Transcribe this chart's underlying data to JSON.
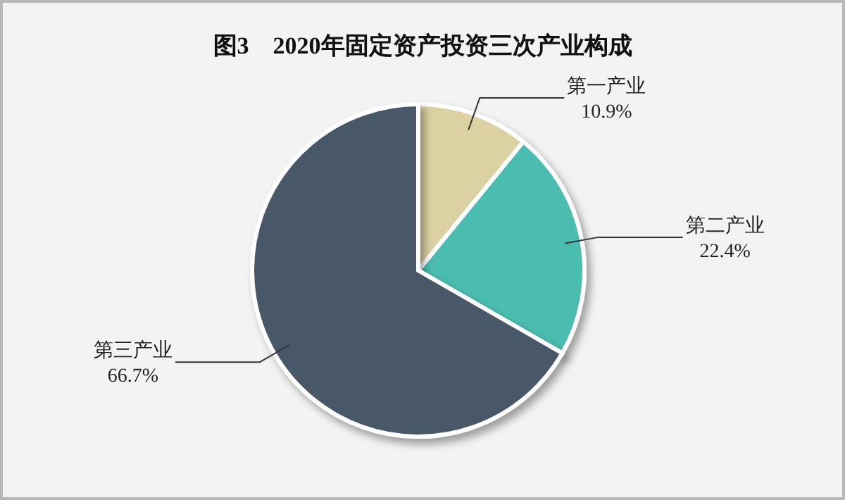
{
  "chart_data": {
    "type": "pie",
    "title": "图3　2020年固定资产投资三次产业构成",
    "categories": [
      "第一产业",
      "第二产业",
      "第三产业"
    ],
    "values": [
      10.9,
      22.4,
      66.7
    ],
    "value_labels": [
      "10.9%",
      "22.4%",
      "66.7%"
    ],
    "colors": [
      "#dcd1a3",
      "#4cbcb0",
      "#4a5869"
    ]
  }
}
